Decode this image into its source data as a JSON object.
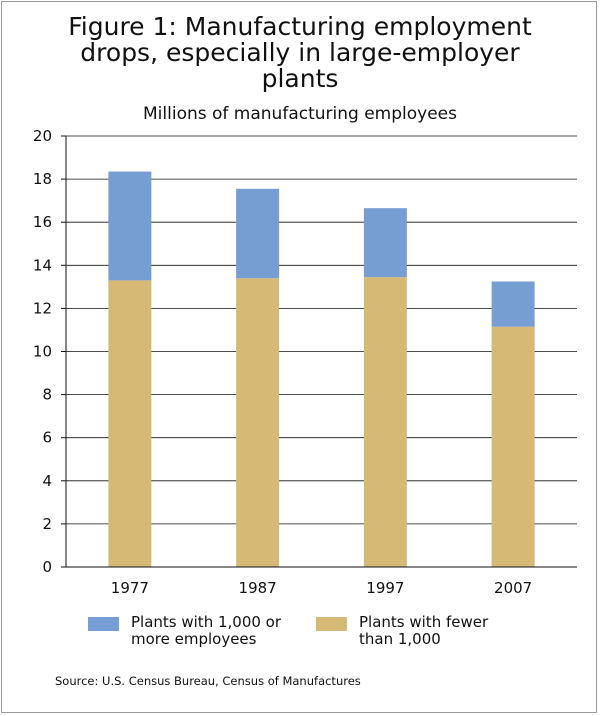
{
  "chart_data": {
    "type": "bar",
    "stacked": true,
    "title": "Figure 1: Manufacturing employment\ndrops, especially in large-employer\nplants",
    "subtitle": "Millions of manufacturing employees",
    "categories": [
      "1977",
      "1987",
      "1997",
      "2007"
    ],
    "series": [
      {
        "name": "Plants with fewer\nthan 1,000",
        "values": [
          13.3,
          13.4,
          13.45,
          11.15
        ],
        "color": "#d7b976"
      },
      {
        "name": "Plants with 1,000 or\nmore employees",
        "values": [
          5.05,
          4.15,
          3.2,
          2.1
        ],
        "color": "#769ed2"
      }
    ],
    "ylim": [
      0,
      20
    ],
    "yticks": [
      0,
      2,
      4,
      6,
      8,
      10,
      12,
      14,
      16,
      18,
      20
    ],
    "grid": true,
    "legend_position": "bottom",
    "source": "Source: U.S. Census Bureau, Census of Manufactures"
  }
}
